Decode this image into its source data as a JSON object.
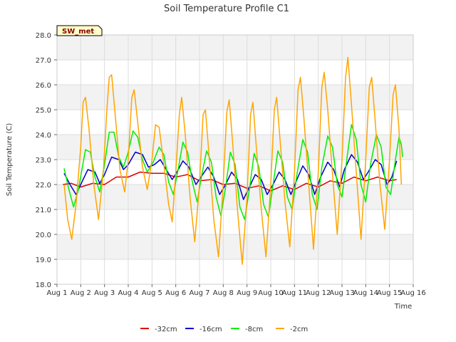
{
  "chart_data": {
    "type": "line",
    "title": "Soil Temperature Profile C1",
    "xlabel": "Time",
    "ylabel": "Soil Temperature (C)",
    "badge": "SW_met",
    "xlim": [
      1,
      16
    ],
    "ylim": [
      18,
      28
    ],
    "x_ticks": [
      1,
      2,
      3,
      4,
      5,
      6,
      7,
      8,
      9,
      10,
      11,
      12,
      13,
      14,
      15,
      16
    ],
    "x_tick_labels": [
      "Aug 1",
      "Aug 2",
      "Aug 3",
      "Aug 4",
      "Aug 5",
      "Aug 6",
      "Aug 7",
      "Aug 8",
      "Aug 9",
      "Aug 10",
      "Aug 11",
      "Aug 12",
      "Aug 13",
      "Aug 14",
      "Aug 15",
      "Aug 16"
    ],
    "y_ticks": [
      18,
      19,
      20,
      21,
      22,
      23,
      24,
      25,
      26,
      27,
      28
    ],
    "y_tick_labels": [
      "18.0",
      "19.0",
      "20.0",
      "21.0",
      "22.0",
      "23.0",
      "24.0",
      "25.0",
      "26.0",
      "27.0",
      "28.0"
    ],
    "grid": true,
    "legend_position": "bottom-center",
    "series": [
      {
        "name": "-32cm",
        "color": "#dd0000",
        "points": [
          [
            1.25,
            22.0
          ],
          [
            1.6,
            22.05
          ],
          [
            2.0,
            21.9
          ],
          [
            2.5,
            22.05
          ],
          [
            3.0,
            22.0
          ],
          [
            3.5,
            22.3
          ],
          [
            4.0,
            22.3
          ],
          [
            4.5,
            22.5
          ],
          [
            5.0,
            22.45
          ],
          [
            5.5,
            22.45
          ],
          [
            6.0,
            22.3
          ],
          [
            6.5,
            22.4
          ],
          [
            7.0,
            22.15
          ],
          [
            7.5,
            22.2
          ],
          [
            8.0,
            22.0
          ],
          [
            8.5,
            22.05
          ],
          [
            9.0,
            21.85
          ],
          [
            9.5,
            21.95
          ],
          [
            10.0,
            21.75
          ],
          [
            10.5,
            21.95
          ],
          [
            11.0,
            21.8
          ],
          [
            11.5,
            22.05
          ],
          [
            12.0,
            21.9
          ],
          [
            12.5,
            22.15
          ],
          [
            13.0,
            22.05
          ],
          [
            13.5,
            22.3
          ],
          [
            14.0,
            22.15
          ],
          [
            14.5,
            22.3
          ],
          [
            15.0,
            22.15
          ],
          [
            15.3,
            22.2
          ]
        ]
      },
      {
        "name": "-16cm",
        "color": "#0000cc",
        "points": [
          [
            1.3,
            22.45
          ],
          [
            1.55,
            22.0
          ],
          [
            1.8,
            21.6
          ],
          [
            2.0,
            22.0
          ],
          [
            2.3,
            22.6
          ],
          [
            2.6,
            22.5
          ],
          [
            2.8,
            22.05
          ],
          [
            3.0,
            22.4
          ],
          [
            3.3,
            23.1
          ],
          [
            3.6,
            23.0
          ],
          [
            3.8,
            22.6
          ],
          [
            4.0,
            22.8
          ],
          [
            4.3,
            23.3
          ],
          [
            4.6,
            23.2
          ],
          [
            4.85,
            22.7
          ],
          [
            5.1,
            22.8
          ],
          [
            5.35,
            23.0
          ],
          [
            5.6,
            22.6
          ],
          [
            5.85,
            22.2
          ],
          [
            6.05,
            22.5
          ],
          [
            6.3,
            22.95
          ],
          [
            6.55,
            22.7
          ],
          [
            6.85,
            22.0
          ],
          [
            7.1,
            22.35
          ],
          [
            7.35,
            22.7
          ],
          [
            7.6,
            22.3
          ],
          [
            7.85,
            21.6
          ],
          [
            8.1,
            22.0
          ],
          [
            8.35,
            22.5
          ],
          [
            8.6,
            22.2
          ],
          [
            8.85,
            21.4
          ],
          [
            9.1,
            21.9
          ],
          [
            9.35,
            22.4
          ],
          [
            9.6,
            22.2
          ],
          [
            9.85,
            21.6
          ],
          [
            10.1,
            22.0
          ],
          [
            10.35,
            22.5
          ],
          [
            10.6,
            22.2
          ],
          [
            10.85,
            21.6
          ],
          [
            11.1,
            22.2
          ],
          [
            11.35,
            22.75
          ],
          [
            11.6,
            22.4
          ],
          [
            11.85,
            21.6
          ],
          [
            12.1,
            22.3
          ],
          [
            12.4,
            22.9
          ],
          [
            12.65,
            22.6
          ],
          [
            12.9,
            21.9
          ],
          [
            13.1,
            22.6
          ],
          [
            13.4,
            23.2
          ],
          [
            13.65,
            22.9
          ],
          [
            13.9,
            22.2
          ],
          [
            14.1,
            22.5
          ],
          [
            14.4,
            23.0
          ],
          [
            14.65,
            22.8
          ],
          [
            14.9,
            22.0
          ],
          [
            15.1,
            22.3
          ],
          [
            15.3,
            22.95
          ]
        ]
      },
      {
        "name": "-8cm",
        "color": "#00ee00",
        "points": [
          [
            1.3,
            22.65
          ],
          [
            1.5,
            21.8
          ],
          [
            1.7,
            21.1
          ],
          [
            1.9,
            21.8
          ],
          [
            2.2,
            23.4
          ],
          [
            2.4,
            23.3
          ],
          [
            2.6,
            22.3
          ],
          [
            2.8,
            21.7
          ],
          [
            3.0,
            22.8
          ],
          [
            3.2,
            24.1
          ],
          [
            3.4,
            24.1
          ],
          [
            3.6,
            23.1
          ],
          [
            3.8,
            22.7
          ],
          [
            4.0,
            23.3
          ],
          [
            4.2,
            24.15
          ],
          [
            4.4,
            23.9
          ],
          [
            4.6,
            23.0
          ],
          [
            4.8,
            22.5
          ],
          [
            5.05,
            22.9
          ],
          [
            5.3,
            23.5
          ],
          [
            5.5,
            23.2
          ],
          [
            5.7,
            22.1
          ],
          [
            5.9,
            21.6
          ],
          [
            6.1,
            22.6
          ],
          [
            6.3,
            23.7
          ],
          [
            6.5,
            23.3
          ],
          [
            6.7,
            22.1
          ],
          [
            6.9,
            21.3
          ],
          [
            7.1,
            22.4
          ],
          [
            7.3,
            23.35
          ],
          [
            7.5,
            22.9
          ],
          [
            7.7,
            21.5
          ],
          [
            7.9,
            20.75
          ],
          [
            8.1,
            21.9
          ],
          [
            8.3,
            23.3
          ],
          [
            8.5,
            22.8
          ],
          [
            8.7,
            21.1
          ],
          [
            8.9,
            20.6
          ],
          [
            9.1,
            21.8
          ],
          [
            9.3,
            23.25
          ],
          [
            9.5,
            22.7
          ],
          [
            9.7,
            21.2
          ],
          [
            9.9,
            20.7
          ],
          [
            10.1,
            22.0
          ],
          [
            10.3,
            23.35
          ],
          [
            10.5,
            22.9
          ],
          [
            10.7,
            21.5
          ],
          [
            10.9,
            21.0
          ],
          [
            11.1,
            22.4
          ],
          [
            11.35,
            23.8
          ],
          [
            11.55,
            23.3
          ],
          [
            11.75,
            21.6
          ],
          [
            11.95,
            21.0
          ],
          [
            12.15,
            22.7
          ],
          [
            12.4,
            23.95
          ],
          [
            12.6,
            23.5
          ],
          [
            12.8,
            22.0
          ],
          [
            13.0,
            21.5
          ],
          [
            13.2,
            23.0
          ],
          [
            13.4,
            24.4
          ],
          [
            13.6,
            23.8
          ],
          [
            13.8,
            22.0
          ],
          [
            14.0,
            21.3
          ],
          [
            14.2,
            22.8
          ],
          [
            14.45,
            24.0
          ],
          [
            14.65,
            23.5
          ],
          [
            14.85,
            21.9
          ],
          [
            15.05,
            21.6
          ],
          [
            15.25,
            23.0
          ],
          [
            15.4,
            23.9
          ],
          [
            15.5,
            23.6
          ],
          [
            15.55,
            23.1
          ]
        ]
      },
      {
        "name": "-2cm",
        "color": "#ffa500",
        "points": [
          [
            1.3,
            22.0
          ],
          [
            1.45,
            20.6
          ],
          [
            1.62,
            19.8
          ],
          [
            1.8,
            21.2
          ],
          [
            2.0,
            23.5
          ],
          [
            2.1,
            25.3
          ],
          [
            2.2,
            25.5
          ],
          [
            2.35,
            24.2
          ],
          [
            2.55,
            22.0
          ],
          [
            2.75,
            20.6
          ],
          [
            2.95,
            22.5
          ],
          [
            3.1,
            25.0
          ],
          [
            3.2,
            26.3
          ],
          [
            3.3,
            26.4
          ],
          [
            3.45,
            24.8
          ],
          [
            3.65,
            22.6
          ],
          [
            3.85,
            21.7
          ],
          [
            4.0,
            23.0
          ],
          [
            4.15,
            25.5
          ],
          [
            4.25,
            25.8
          ],
          [
            4.4,
            24.5
          ],
          [
            4.6,
            22.7
          ],
          [
            4.8,
            21.8
          ],
          [
            5.0,
            23.0
          ],
          [
            5.15,
            24.4
          ],
          [
            5.3,
            24.3
          ],
          [
            5.5,
            22.8
          ],
          [
            5.7,
            21.2
          ],
          [
            5.85,
            20.5
          ],
          [
            6.0,
            22.5
          ],
          [
            6.15,
            24.8
          ],
          [
            6.25,
            25.5
          ],
          [
            6.4,
            24.0
          ],
          [
            6.6,
            21.5
          ],
          [
            6.8,
            19.7
          ],
          [
            7.0,
            22.0
          ],
          [
            7.15,
            24.8
          ],
          [
            7.25,
            25.0
          ],
          [
            7.4,
            23.2
          ],
          [
            7.6,
            20.6
          ],
          [
            7.8,
            19.1
          ],
          [
            8.0,
            22.0
          ],
          [
            8.15,
            24.9
          ],
          [
            8.25,
            25.4
          ],
          [
            8.4,
            23.6
          ],
          [
            8.6,
            21.0
          ],
          [
            8.8,
            18.8
          ],
          [
            9.0,
            21.5
          ],
          [
            9.15,
            24.8
          ],
          [
            9.25,
            25.3
          ],
          [
            9.4,
            23.4
          ],
          [
            9.6,
            21.0
          ],
          [
            9.8,
            19.1
          ],
          [
            10.0,
            22.0
          ],
          [
            10.15,
            25.0
          ],
          [
            10.25,
            25.5
          ],
          [
            10.4,
            23.7
          ],
          [
            10.6,
            21.3
          ],
          [
            10.8,
            19.5
          ],
          [
            11.0,
            22.5
          ],
          [
            11.15,
            25.8
          ],
          [
            11.25,
            26.3
          ],
          [
            11.4,
            24.6
          ],
          [
            11.6,
            22.0
          ],
          [
            11.8,
            19.4
          ],
          [
            12.0,
            22.5
          ],
          [
            12.15,
            25.9
          ],
          [
            12.25,
            26.5
          ],
          [
            12.4,
            25.0
          ],
          [
            12.6,
            22.4
          ],
          [
            12.8,
            20.0
          ],
          [
            13.0,
            23.0
          ],
          [
            13.15,
            26.3
          ],
          [
            13.25,
            27.1
          ],
          [
            13.4,
            25.2
          ],
          [
            13.6,
            22.5
          ],
          [
            13.8,
            19.8
          ],
          [
            14.0,
            23.0
          ],
          [
            14.15,
            25.9
          ],
          [
            14.25,
            26.3
          ],
          [
            14.4,
            24.5
          ],
          [
            14.6,
            22.0
          ],
          [
            14.8,
            20.2
          ],
          [
            15.0,
            23.0
          ],
          [
            15.15,
            25.6
          ],
          [
            15.25,
            26.0
          ],
          [
            15.4,
            24.2
          ],
          [
            15.5,
            22.0
          ]
        ]
      }
    ]
  }
}
